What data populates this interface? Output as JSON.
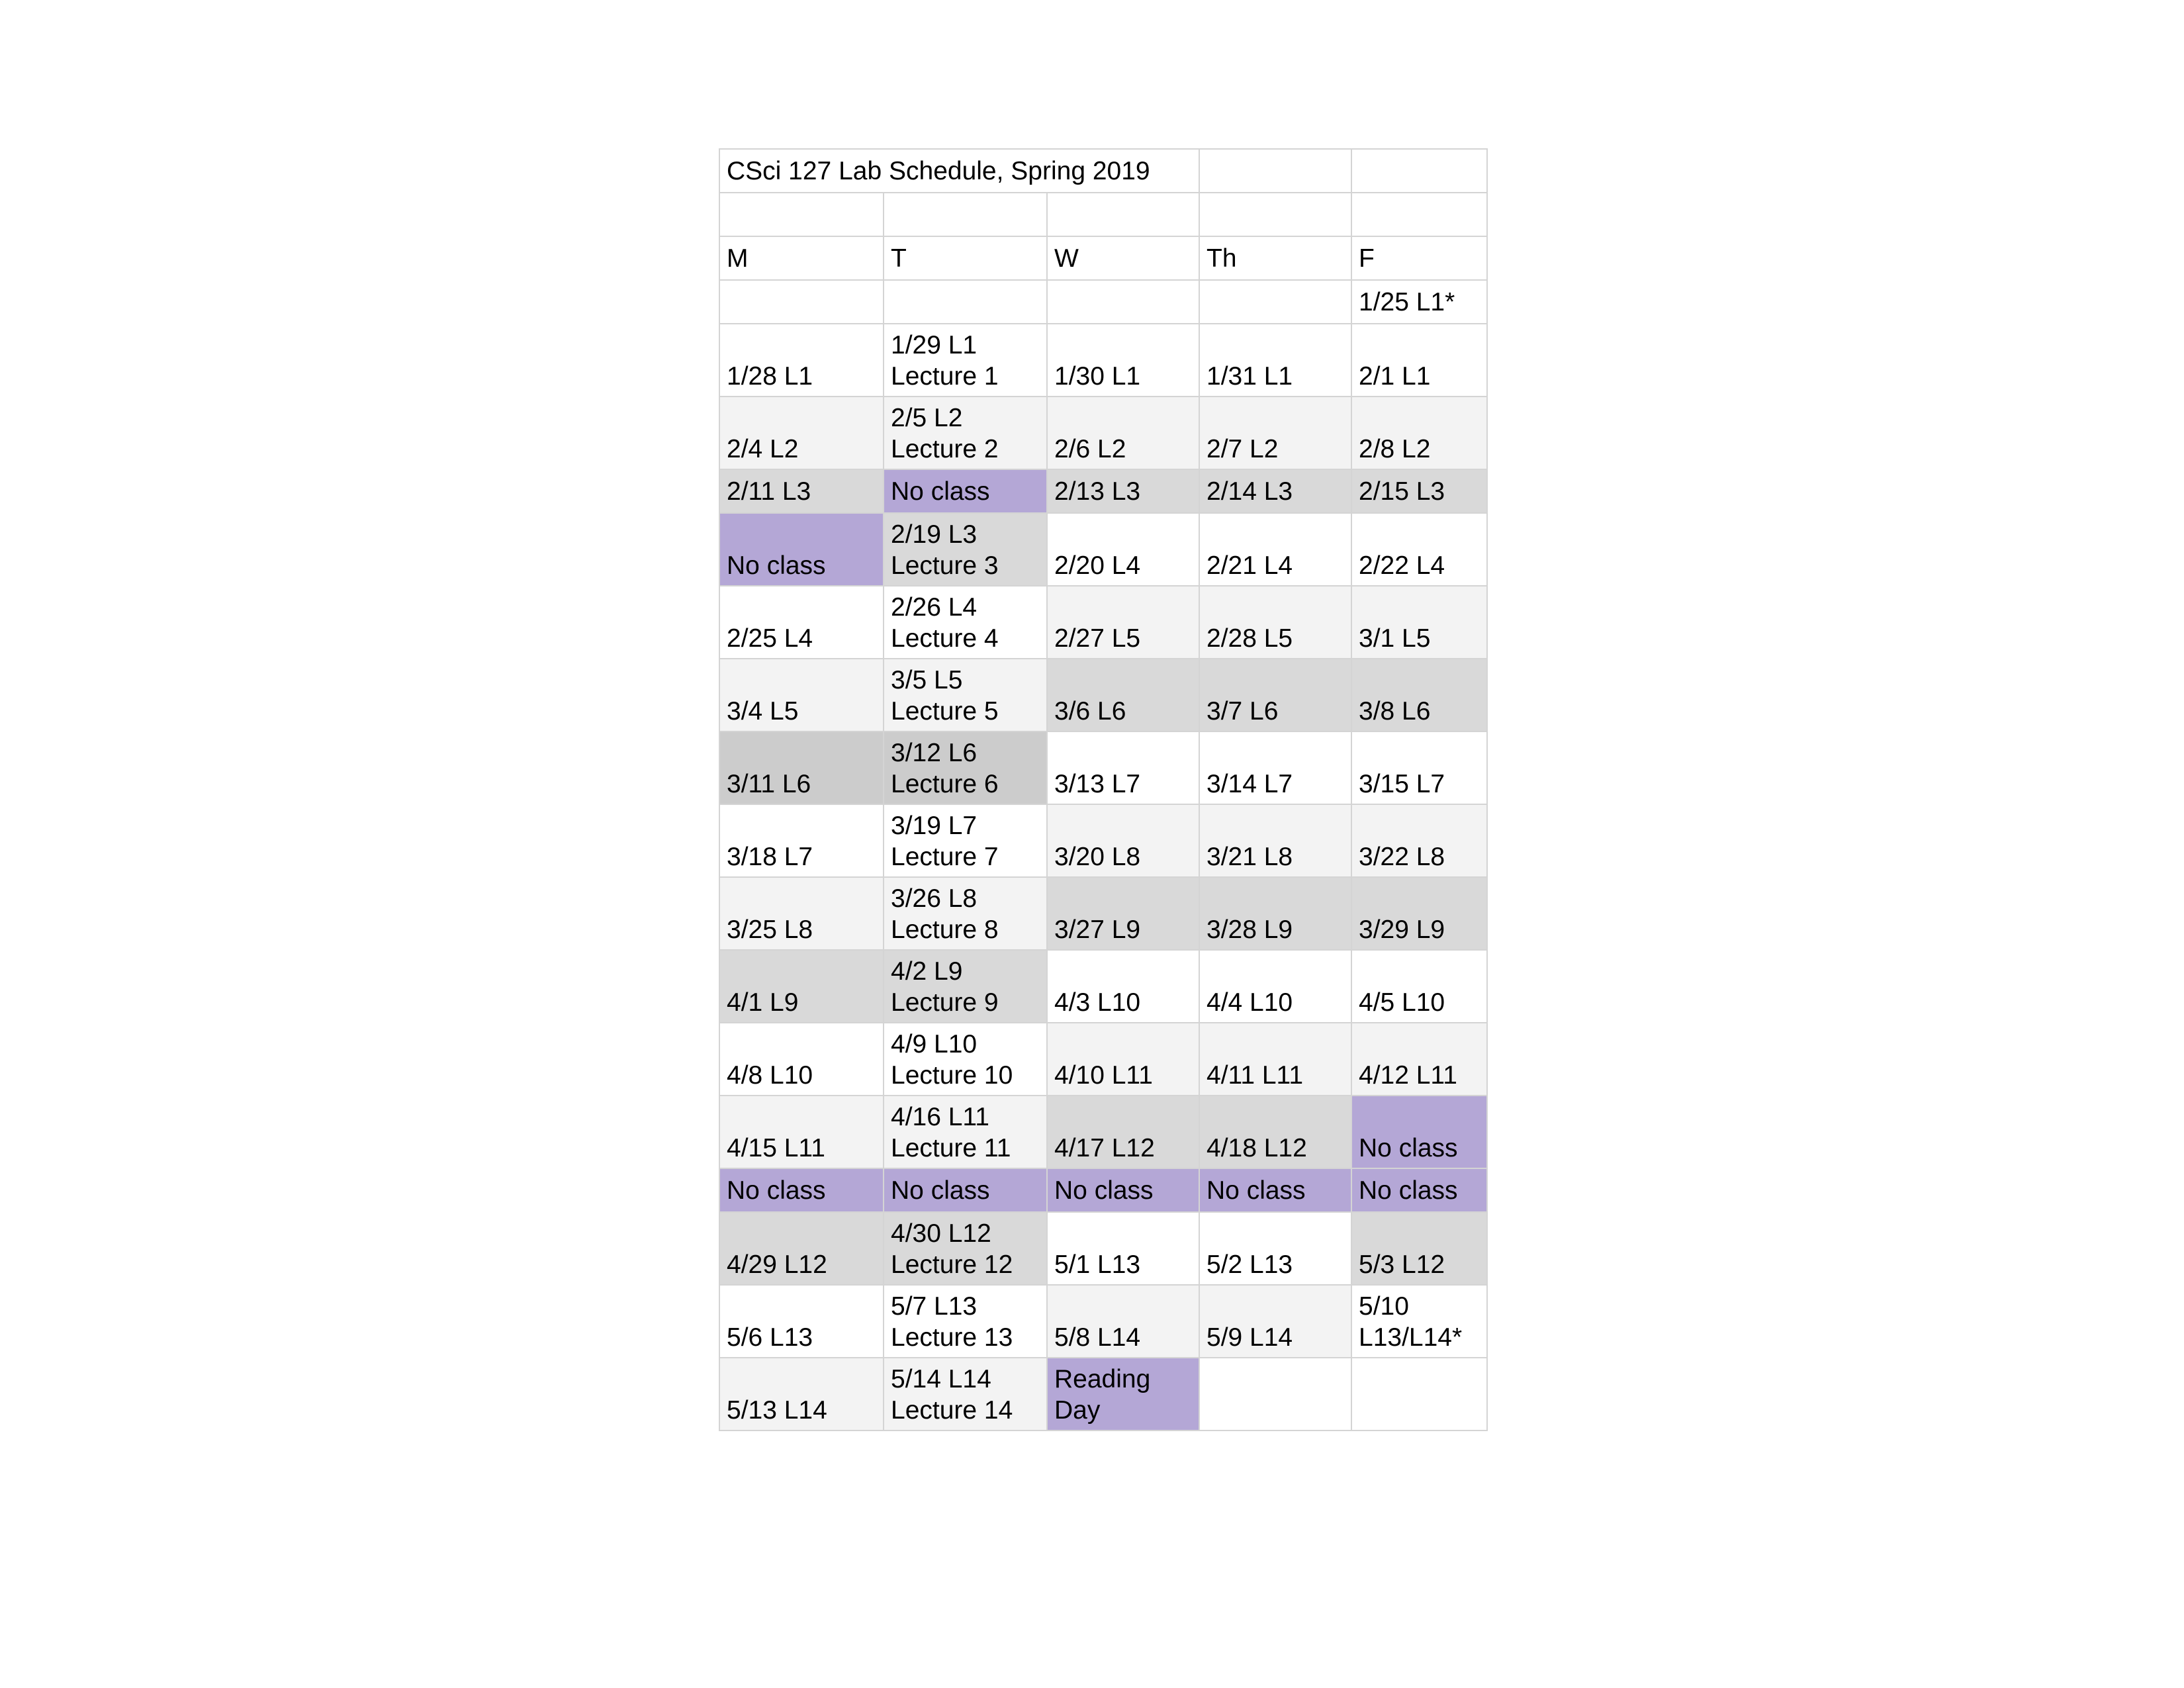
{
  "title": "CSci 127 Lab Schedule, Spring 2019",
  "days": [
    "M",
    "T",
    "W",
    "Th",
    "F"
  ],
  "colors": {
    "white": "#ffffff",
    "light_gray": "#f3f3f3",
    "gray": "#d9d9d9",
    "dark_gray": "#cccccc",
    "no_class_purple": "#b4a7d6"
  },
  "rows": [
    {
      "tall": false,
      "cells": [
        {
          "lines": [
            ""
          ],
          "bg": "w"
        },
        {
          "lines": [
            ""
          ],
          "bg": "w"
        },
        {
          "lines": [
            ""
          ],
          "bg": "w"
        },
        {
          "lines": [
            ""
          ],
          "bg": "w"
        },
        {
          "lines": [
            "1/25 L1*"
          ],
          "bg": "w"
        }
      ]
    },
    {
      "tall": true,
      "cells": [
        {
          "lines": [
            "1/28 L1"
          ],
          "bg": "w"
        },
        {
          "lines": [
            "1/29 L1",
            "Lecture 1"
          ],
          "bg": "w"
        },
        {
          "lines": [
            "1/30 L1"
          ],
          "bg": "w"
        },
        {
          "lines": [
            "1/31 L1"
          ],
          "bg": "w"
        },
        {
          "lines": [
            "2/1 L1"
          ],
          "bg": "w"
        }
      ]
    },
    {
      "tall": true,
      "cells": [
        {
          "lines": [
            "2/4 L2"
          ],
          "bg": "l"
        },
        {
          "lines": [
            "2/5 L2",
            "Lecture 2"
          ],
          "bg": "l"
        },
        {
          "lines": [
            "2/6 L2"
          ],
          "bg": "l"
        },
        {
          "lines": [
            "2/7 L2"
          ],
          "bg": "l"
        },
        {
          "lines": [
            "2/8 L2"
          ],
          "bg": "l"
        }
      ]
    },
    {
      "tall": false,
      "cells": [
        {
          "lines": [
            "2/11 L3"
          ],
          "bg": "d"
        },
        {
          "lines": [
            "No class"
          ],
          "bg": "p"
        },
        {
          "lines": [
            "2/13 L3"
          ],
          "bg": "d"
        },
        {
          "lines": [
            "2/14 L3"
          ],
          "bg": "d"
        },
        {
          "lines": [
            "2/15 L3"
          ],
          "bg": "d"
        }
      ]
    },
    {
      "tall": true,
      "cells": [
        {
          "lines": [
            "No class"
          ],
          "bg": "p"
        },
        {
          "lines": [
            "2/19 L3",
            "Lecture 3"
          ],
          "bg": "d"
        },
        {
          "lines": [
            "2/20 L4"
          ],
          "bg": "w"
        },
        {
          "lines": [
            "2/21 L4"
          ],
          "bg": "w"
        },
        {
          "lines": [
            "2/22 L4"
          ],
          "bg": "w"
        }
      ]
    },
    {
      "tall": true,
      "cells": [
        {
          "lines": [
            "2/25 L4"
          ],
          "bg": "w"
        },
        {
          "lines": [
            "2/26 L4",
            "Lecture 4"
          ],
          "bg": "w"
        },
        {
          "lines": [
            "2/27 L5"
          ],
          "bg": "l"
        },
        {
          "lines": [
            "2/28 L5"
          ],
          "bg": "l"
        },
        {
          "lines": [
            "3/1 L5"
          ],
          "bg": "l"
        }
      ]
    },
    {
      "tall": true,
      "cells": [
        {
          "lines": [
            "3/4 L5"
          ],
          "bg": "l"
        },
        {
          "lines": [
            "3/5 L5",
            "Lecture 5"
          ],
          "bg": "l"
        },
        {
          "lines": [
            "3/6 L6"
          ],
          "bg": "d"
        },
        {
          "lines": [
            "3/7 L6"
          ],
          "bg": "d"
        },
        {
          "lines": [
            "3/8 L6"
          ],
          "bg": "d"
        }
      ]
    },
    {
      "tall": true,
      "cells": [
        {
          "lines": [
            "3/11 L6"
          ],
          "bg": "g"
        },
        {
          "lines": [
            "3/12 L6",
            "Lecture 6"
          ],
          "bg": "g"
        },
        {
          "lines": [
            "3/13 L7"
          ],
          "bg": "w"
        },
        {
          "lines": [
            "3/14 L7"
          ],
          "bg": "w"
        },
        {
          "lines": [
            "3/15 L7"
          ],
          "bg": "w"
        }
      ]
    },
    {
      "tall": true,
      "cells": [
        {
          "lines": [
            "3/18 L7"
          ],
          "bg": "w"
        },
        {
          "lines": [
            "3/19 L7",
            "Lecture 7"
          ],
          "bg": "w"
        },
        {
          "lines": [
            "3/20 L8"
          ],
          "bg": "l"
        },
        {
          "lines": [
            "3/21 L8"
          ],
          "bg": "l"
        },
        {
          "lines": [
            "3/22 L8"
          ],
          "bg": "l"
        }
      ]
    },
    {
      "tall": true,
      "cells": [
        {
          "lines": [
            "3/25 L8"
          ],
          "bg": "l"
        },
        {
          "lines": [
            "3/26 L8",
            "Lecture 8"
          ],
          "bg": "l"
        },
        {
          "lines": [
            "3/27 L9"
          ],
          "bg": "d"
        },
        {
          "lines": [
            "3/28 L9"
          ],
          "bg": "d"
        },
        {
          "lines": [
            "3/29 L9"
          ],
          "bg": "d"
        }
      ]
    },
    {
      "tall": true,
      "cells": [
        {
          "lines": [
            "4/1 L9"
          ],
          "bg": "d"
        },
        {
          "lines": [
            "4/2 L9",
            "Lecture 9"
          ],
          "bg": "d"
        },
        {
          "lines": [
            "4/3 L10"
          ],
          "bg": "w"
        },
        {
          "lines": [
            "4/4 L10"
          ],
          "bg": "w"
        },
        {
          "lines": [
            "4/5 L10"
          ],
          "bg": "w"
        }
      ]
    },
    {
      "tall": true,
      "cells": [
        {
          "lines": [
            "4/8 L10"
          ],
          "bg": "w"
        },
        {
          "lines": [
            "4/9 L10",
            "Lecture 10"
          ],
          "bg": "w"
        },
        {
          "lines": [
            "4/10 L11"
          ],
          "bg": "l"
        },
        {
          "lines": [
            "4/11 L11"
          ],
          "bg": "l"
        },
        {
          "lines": [
            "4/12 L11"
          ],
          "bg": "l"
        }
      ]
    },
    {
      "tall": true,
      "cells": [
        {
          "lines": [
            "4/15 L11"
          ],
          "bg": "l"
        },
        {
          "lines": [
            "4/16 L11",
            "Lecture 11"
          ],
          "bg": "l"
        },
        {
          "lines": [
            "4/17 L12"
          ],
          "bg": "d"
        },
        {
          "lines": [
            "4/18 L12"
          ],
          "bg": "d"
        },
        {
          "lines": [
            "No class"
          ],
          "bg": "p"
        }
      ]
    },
    {
      "tall": false,
      "cells": [
        {
          "lines": [
            "No class"
          ],
          "bg": "p"
        },
        {
          "lines": [
            "No class"
          ],
          "bg": "p"
        },
        {
          "lines": [
            "No class"
          ],
          "bg": "p"
        },
        {
          "lines": [
            "No class"
          ],
          "bg": "p"
        },
        {
          "lines": [
            "No class"
          ],
          "bg": "p"
        }
      ]
    },
    {
      "tall": true,
      "cells": [
        {
          "lines": [
            "4/29 L12"
          ],
          "bg": "d"
        },
        {
          "lines": [
            "4/30 L12",
            "Lecture 12"
          ],
          "bg": "d"
        },
        {
          "lines": [
            "5/1 L13"
          ],
          "bg": "w"
        },
        {
          "lines": [
            "5/2 L13"
          ],
          "bg": "w"
        },
        {
          "lines": [
            "5/3 L12"
          ],
          "bg": "d"
        }
      ]
    },
    {
      "tall": true,
      "cells": [
        {
          "lines": [
            "5/6 L13"
          ],
          "bg": "w"
        },
        {
          "lines": [
            "5/7 L13",
            "Lecture 13"
          ],
          "bg": "w"
        },
        {
          "lines": [
            "5/8 L14"
          ],
          "bg": "l"
        },
        {
          "lines": [
            "5/9 L14"
          ],
          "bg": "l"
        },
        {
          "lines": [
            "5/10",
            "L13/L14*"
          ],
          "bg": "w"
        }
      ]
    },
    {
      "tall": true,
      "cells": [
        {
          "lines": [
            "5/13 L14"
          ],
          "bg": "l"
        },
        {
          "lines": [
            "5/14 L14",
            "Lecture 14"
          ],
          "bg": "l"
        },
        {
          "lines": [
            "Reading",
            "Day"
          ],
          "bg": "p"
        },
        {
          "lines": [
            ""
          ],
          "bg": "w"
        },
        {
          "lines": [
            ""
          ],
          "bg": "w"
        }
      ]
    }
  ]
}
